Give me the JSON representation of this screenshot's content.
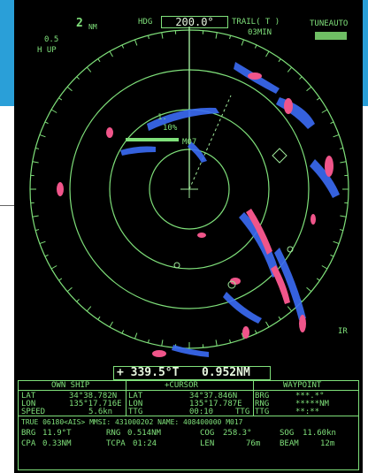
{
  "header": {
    "range": "2",
    "range_unit": "NM",
    "ring_interval": "0.5",
    "orientation": "H UP",
    "hdg_label": "HDG",
    "hdg_value": "200.0°",
    "trail_label": "TRAIL( T )",
    "trail_time": "03MIN",
    "tune_label": "TUNEAUTO"
  },
  "plot": {
    "vrm_label": "1.",
    "target_tag": "10%",
    "target_id": "M07",
    "right_label": "IR"
  },
  "readout": {
    "ebl": "+ 339.5°T",
    "vrm": "0.952NM"
  },
  "panel": {
    "headers": [
      "OWN SHIP",
      "+CURSOR",
      "WAYPOINT"
    ],
    "own_ship": {
      "lat_label": "LAT",
      "lat": "34°38.782N",
      "lon_label": "LON",
      "lon": "135°17.716E",
      "speed_label": "SPEED",
      "speed": "5.6kn"
    },
    "cursor": {
      "lat_label": "LAT",
      "lat": "34°37.846N",
      "lon_label": "LON",
      "lon": "135°17.787E",
      "ttg_label": "TTG",
      "ttg": "00:10",
      "ttg_label2": "TTG"
    },
    "waypoint": {
      "brg_label": "BRG",
      "brg": "***.*°",
      "rng_label": "RNG",
      "rng": "*****NM",
      "ttg_label": "TTG",
      "ttg": "**:**"
    },
    "ais_line": "TRUE 06180<AIS>  MMSI: 431000202  NAME: 408400000  M017",
    "row1": {
      "brg_label": "BRG",
      "brg": "11.9°T",
      "rng_label": "RNG",
      "rng": "0.514NM",
      "cog_label": "COG",
      "cog": "258.3°",
      "sog_label": "SOG",
      "sog": "11.60kn"
    },
    "row2": {
      "cpa_label": "CPA",
      "cpa": "0.33NM",
      "tcpa_label": "TCPA",
      "tcpa": "01:24",
      "len_label": "LEN",
      "len": "76m",
      "beam_label": "BEAM",
      "beam": "12m"
    }
  },
  "colors": {
    "screen_bg": "#000000",
    "rings": "#7fe07a",
    "echo_blue": "#3b6cf5",
    "echo_pink": "#f0558a",
    "page_band": "#2a9fd8"
  }
}
